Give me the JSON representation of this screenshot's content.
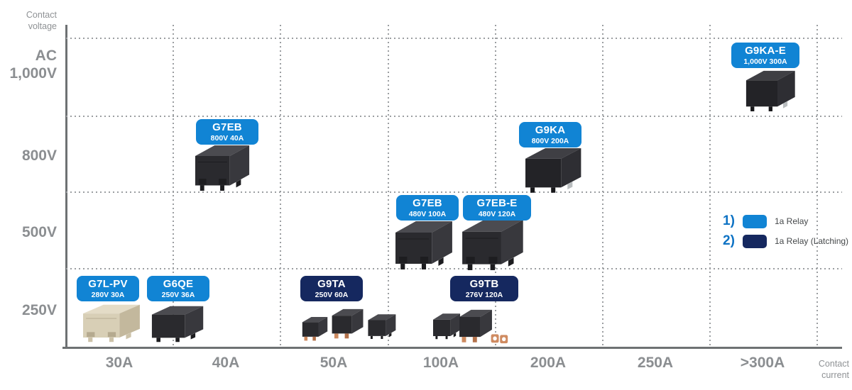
{
  "axes": {
    "y_caption": "Contact\nvoltage",
    "x_caption": "Contact\ncurrent",
    "y_ticks": [
      "AC\n1,000V",
      "800V",
      "500V",
      "250V"
    ],
    "x_ticks": [
      "30A",
      "40A",
      "50A",
      "100A",
      "200A",
      "250A",
      ">300A"
    ]
  },
  "legend": {
    "items": [
      {
        "num": "1)",
        "label": "1a Relay",
        "color": "#1184d4"
      },
      {
        "num": "2)",
        "label": "1a Relay (Latching)",
        "color": "#15285f"
      }
    ]
  },
  "colors": {
    "blue": "#1184d4",
    "navy": "#15285f"
  },
  "products": [
    {
      "name": "G7EB",
      "spec": "800V 40A",
      "type": "blue",
      "kind": "box"
    },
    {
      "name": "G9KA",
      "spec": "800V 200A",
      "type": "blue",
      "kind": "cube"
    },
    {
      "name": "G9KA-E",
      "spec": "1,000V 300A",
      "type": "blue",
      "kind": "cube"
    },
    {
      "name": "G7EB",
      "spec": "480V 100A",
      "type": "blue",
      "kind": "box"
    },
    {
      "name": "G7EB-E",
      "spec": "480V 120A",
      "type": "blue",
      "kind": "box"
    },
    {
      "name": "G7L-PV",
      "spec": "280V 30A",
      "type": "blue",
      "kind": "boxBeige"
    },
    {
      "name": "G6QE",
      "spec": "250V 36A",
      "type": "blue",
      "kind": "boxPlain"
    },
    {
      "name": "G9TA",
      "spec": "250V 60A",
      "type": "navy",
      "kind": "trio"
    },
    {
      "name": "G9TB",
      "spec": "276V 120A",
      "type": "navy",
      "kind": "duo"
    }
  ],
  "chart_data": {
    "type": "scatter",
    "title": "Relay product lineup by contact voltage and contact current",
    "xlabel": "Contact current",
    "ylabel": "Contact voltage",
    "x_ticks": [
      "30A",
      "40A",
      "50A",
      "100A",
      "200A",
      "250A",
      ">300A"
    ],
    "y_ticks": [
      "AC 1,000V",
      "800V",
      "500V",
      "250V"
    ],
    "grid": "dotted",
    "legend_position": "right",
    "series": [
      {
        "name": "1a Relay",
        "color": "#1184d4",
        "points": [
          {
            "model": "G7L-PV",
            "voltage_V": 280,
            "current_A": 30,
            "x_band": "30A",
            "y_band": "250V"
          },
          {
            "model": "G6QE",
            "voltage_V": 250,
            "current_A": 36,
            "x_band": "30A",
            "y_band": "250V"
          },
          {
            "model": "G7EB",
            "voltage_V": 800,
            "current_A": 40,
            "x_band": "40A",
            "y_band": "800V"
          },
          {
            "model": "G7EB",
            "voltage_V": 480,
            "current_A": 100,
            "x_band": "100A",
            "y_band": "500V"
          },
          {
            "model": "G7EB-E",
            "voltage_V": 480,
            "current_A": 120,
            "x_band": "100A",
            "y_band": "500V"
          },
          {
            "model": "G9KA",
            "voltage_V": 800,
            "current_A": 200,
            "x_band": "200A",
            "y_band": "800V"
          },
          {
            "model": "G9KA-E",
            "voltage_V": 1000,
            "current_A": 300,
            "x_band": ">300A",
            "y_band": "AC 1,000V"
          }
        ]
      },
      {
        "name": "1a Relay (Latching)",
        "color": "#15285f",
        "points": [
          {
            "model": "G9TA",
            "voltage_V": 250,
            "current_A": 60,
            "x_band": "50A",
            "y_band": "250V"
          },
          {
            "model": "G9TB",
            "voltage_V": 276,
            "current_A": 120,
            "x_band": "100A",
            "y_band": "250V"
          }
        ]
      }
    ]
  }
}
